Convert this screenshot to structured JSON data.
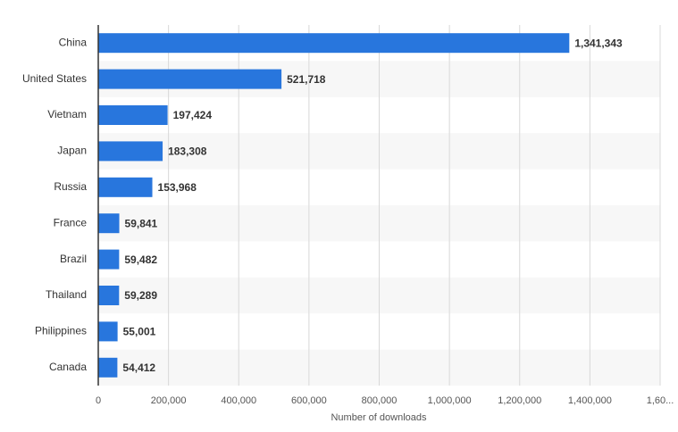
{
  "chart_data": {
    "type": "hbar",
    "x_label": "Number of downloads",
    "categories": [
      "China",
      "United States",
      "Vietnam",
      "Japan",
      "Russia",
      "France",
      "Brazil",
      "Thailand",
      "Philippines",
      "Canada"
    ],
    "values": [
      1341343,
      521718,
      197424,
      183308,
      153968,
      59841,
      59482,
      59289,
      55001,
      54412
    ],
    "value_labels": [
      "1,341,343",
      "521,718",
      "197,424",
      "183,308",
      "153,968",
      "59,841",
      "59,482",
      "59,289",
      "55,001",
      "54,412"
    ],
    "color": "#2876dd",
    "xlim": [
      0,
      1600000
    ],
    "xticks": [
      0,
      {
        "value": 200000,
        "label": "200,000"
      },
      {
        "value": 400000,
        "label": "400,000"
      },
      {
        "value": 600000,
        "label": "600,000"
      },
      {
        "value": 800000,
        "label": "800,000"
      },
      {
        "value": 1000000,
        "label": "1,000,000"
      },
      {
        "value": 1200000,
        "label": "1,200,000"
      },
      {
        "value": 1400000,
        "label": "1,400,000"
      },
      {
        "value": 1600000,
        "label": "1,60..."
      }
    ],
    "grid": true
  }
}
